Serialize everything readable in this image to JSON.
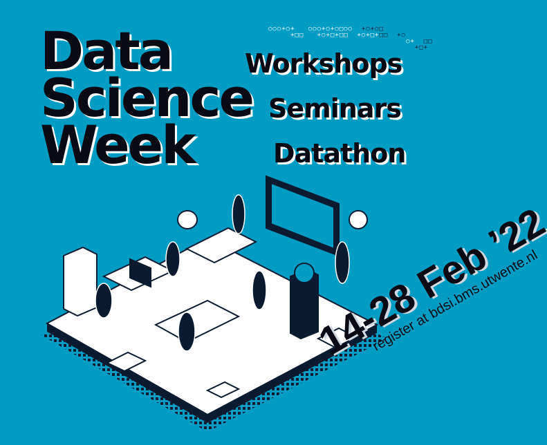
{
  "title": {
    "lines": [
      "Data",
      "Science",
      "Week"
    ]
  },
  "events": [
    "Workshops",
    "Seminars",
    "Datathon"
  ],
  "date": "14-28 Feb ’22",
  "register": "register at bdsi.bms.utwente.nl",
  "colors": {
    "background": "#009cc4",
    "text": "#0a0a14",
    "shadow": "#ffffff"
  }
}
